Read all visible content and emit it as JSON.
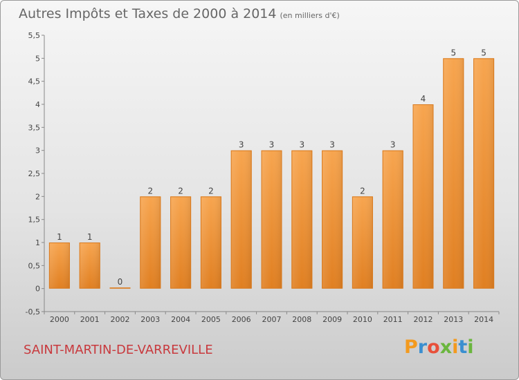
{
  "chart_data": {
    "type": "bar",
    "title": "Autres Impôts et Taxes de 2000 à 2014",
    "subtitle": "(en milliers d'€)",
    "categories": [
      "2000",
      "2001",
      "2002",
      "2003",
      "2004",
      "2005",
      "2006",
      "2007",
      "2008",
      "2009",
      "2010",
      "2011",
      "2012",
      "2013",
      "2014"
    ],
    "values": [
      1,
      1,
      0,
      2,
      2,
      2,
      3,
      3,
      3,
      3,
      2,
      3,
      4,
      5,
      5
    ],
    "data_labels": [
      "1",
      "1",
      "0",
      "2",
      "2",
      "2",
      "3",
      "3",
      "3",
      "3",
      "2",
      "3",
      "4",
      "5",
      "5"
    ],
    "ylim": [
      -0.5,
      5.5
    ],
    "yticks": [
      "-0,5",
      "0",
      "0,5",
      "1",
      "1,5",
      "2",
      "2,5",
      "3",
      "3,5",
      "4",
      "4,5",
      "5",
      "5,5"
    ],
    "grid": false,
    "bar_color": "#f0943e"
  },
  "footer": {
    "commune": "SAINT-MARTIN-DE-VARREVILLE",
    "logo": [
      "P",
      "r",
      "o",
      "x",
      "i",
      "t",
      "i"
    ]
  },
  "colors": {
    "logo": [
      "#f39a1e",
      "#3a8fd0",
      "#e8503a",
      "#6ab63e",
      "#f39a1e",
      "#3a8fd0",
      "#6ab63e"
    ],
    "commune": "#c8393d"
  }
}
